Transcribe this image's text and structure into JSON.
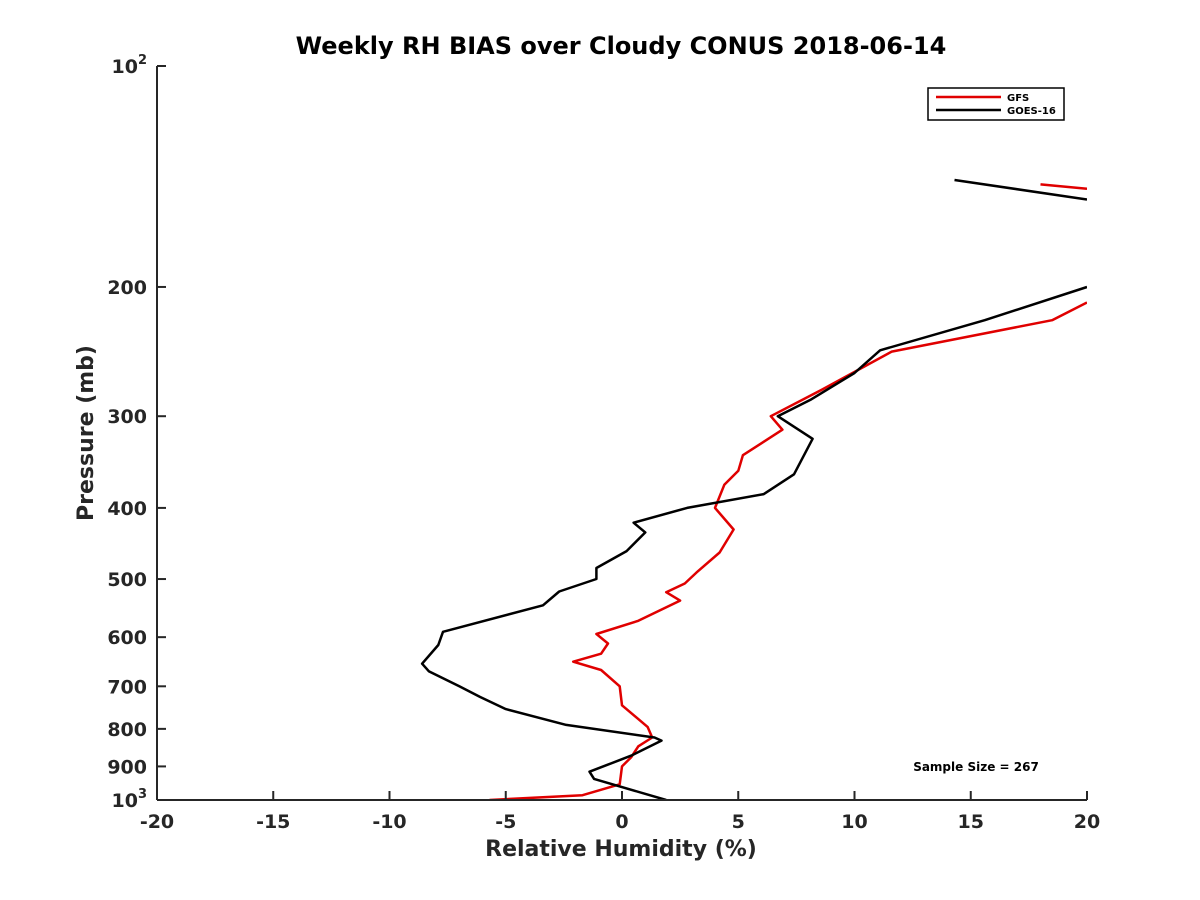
{
  "chart_data": {
    "type": "line",
    "title": "Weekly RH BIAS over Cloudy CONUS 2018-06-14",
    "xlabel": "Relative Humidity (%)",
    "ylabel": "Pressure (mb)",
    "xlim": [
      -20,
      20
    ],
    "ylim": [
      100,
      1000
    ],
    "y_scale": "log",
    "y_reversed": true,
    "grid": false,
    "legend_position": "top-right",
    "x_ticks": [
      "-20",
      "-15",
      "-10",
      "-5",
      "0",
      "5",
      "10",
      "15",
      "20"
    ],
    "y_ticks": [
      {
        "value": 100,
        "base": "10",
        "exp": "2"
      },
      {
        "value": 200,
        "label": "200"
      },
      {
        "value": 300,
        "label": "300"
      },
      {
        "value": 400,
        "label": "400"
      },
      {
        "value": 500,
        "label": "500"
      },
      {
        "value": 600,
        "label": "600"
      },
      {
        "value": 700,
        "label": "700"
      },
      {
        "value": 800,
        "label": "800"
      },
      {
        "value": 900,
        "label": "900"
      },
      {
        "value": 1000,
        "base": "10",
        "exp": "3"
      }
    ],
    "series": [
      {
        "name": "GFS",
        "color": "#e00000",
        "segments": [
          [
            [
              18.0,
              145
            ],
            [
              20.0,
              147
            ]
          ],
          [
            [
              20.0,
              210
            ],
            [
              18.5,
              222
            ],
            [
              11.6,
              245
            ],
            [
              8.6,
              276
            ],
            [
              6.4,
              300
            ],
            [
              6.9,
              313
            ],
            [
              5.2,
              339
            ],
            [
              5.0,
              356
            ],
            [
              4.4,
              372
            ],
            [
              4.0,
              400
            ],
            [
              4.8,
              428
            ],
            [
              4.2,
              460
            ],
            [
              3.2,
              490
            ],
            [
              2.7,
              507
            ],
            [
              1.9,
              521
            ],
            [
              2.5,
              535
            ],
            [
              0.7,
              570
            ],
            [
              -1.1,
              594
            ],
            [
              -0.6,
              612
            ],
            [
              -0.9,
              632
            ],
            [
              -2.1,
              648
            ],
            [
              -0.9,
              665
            ],
            [
              -0.1,
              700
            ],
            [
              0.0,
              743
            ],
            [
              1.1,
              795
            ],
            [
              1.3,
              822
            ],
            [
              0.7,
              845
            ],
            [
              0.4,
              874
            ],
            [
              0.0,
              900
            ],
            [
              -0.1,
              952
            ],
            [
              -1.7,
              985
            ],
            [
              -5.7,
              1000
            ]
          ]
        ]
      },
      {
        "name": "GOES-16",
        "color": "#000000",
        "segments": [
          [
            [
              14.3,
              143
            ],
            [
              20.0,
              152
            ]
          ],
          [
            [
              20.0,
              200
            ],
            [
              15.6,
              222
            ],
            [
              11.1,
              244
            ],
            [
              10.0,
              262
            ],
            [
              8.1,
              285
            ],
            [
              6.7,
              300
            ],
            [
              8.2,
              322
            ],
            [
              7.4,
              360
            ],
            [
              6.1,
              383
            ],
            [
              2.8,
              400
            ],
            [
              0.5,
              419
            ],
            [
              1.0,
              432
            ],
            [
              0.2,
              458
            ],
            [
              -1.1,
              483
            ],
            [
              -1.1,
              500
            ],
            [
              -2.7,
              520
            ],
            [
              -3.4,
              543
            ],
            [
              -7.7,
              590
            ],
            [
              -7.9,
              615
            ],
            [
              -8.6,
              652
            ],
            [
              -8.3,
              668
            ],
            [
              -7.0,
              700
            ],
            [
              -6.1,
              724
            ],
            [
              -5.0,
              752
            ],
            [
              -2.4,
              790
            ],
            [
              1.4,
              822
            ],
            [
              1.7,
              830
            ],
            [
              0.4,
              870
            ],
            [
              -0.6,
              895
            ],
            [
              -1.4,
              915
            ],
            [
              -1.2,
              936
            ],
            [
              1.9,
              1000
            ]
          ]
        ]
      }
    ],
    "annotation": "Sample Size = 267"
  }
}
